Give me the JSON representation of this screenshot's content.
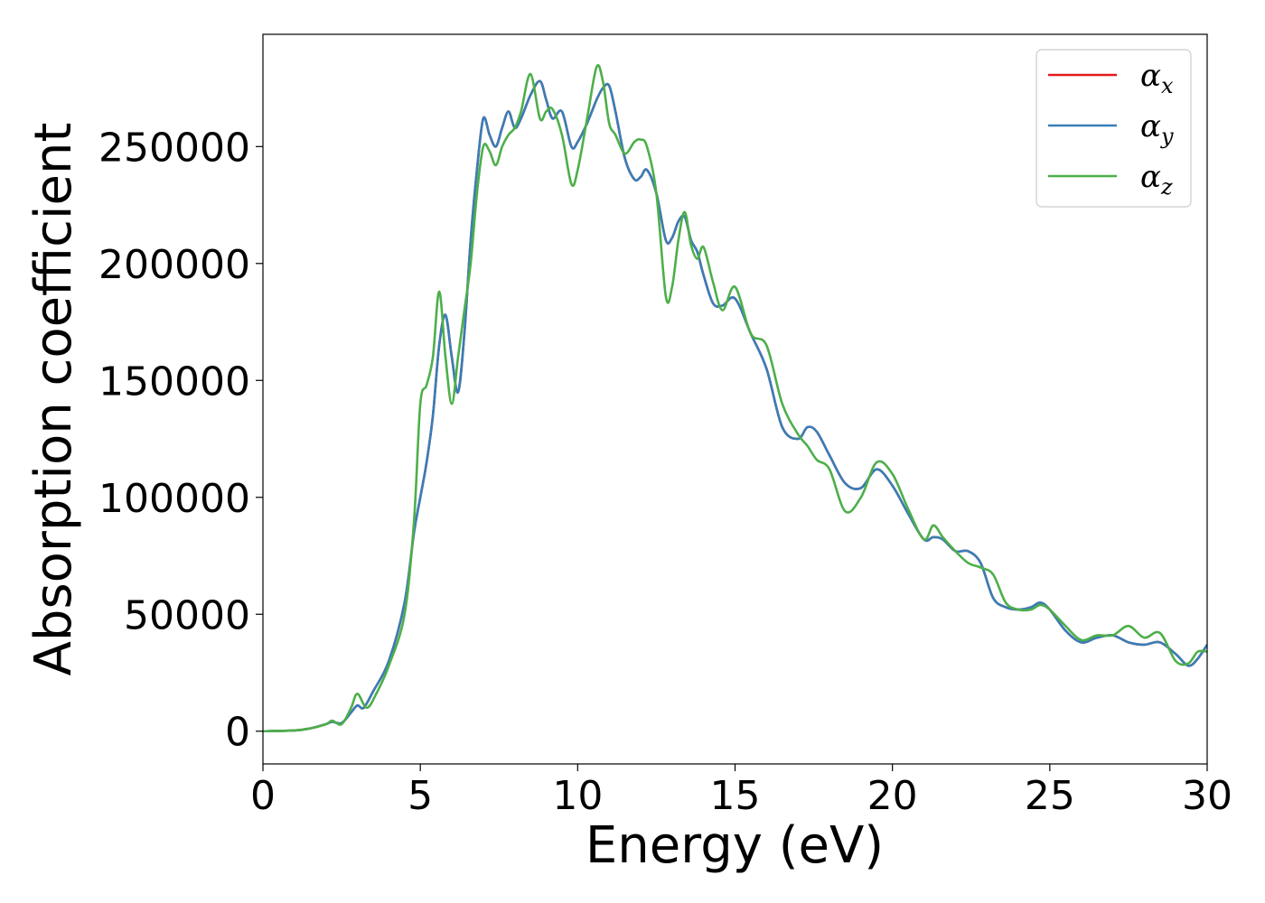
{
  "chart_data": {
    "type": "line",
    "xlabel": "Energy (eV)",
    "ylabel": "Absorption coefficient",
    "xlim": [
      0,
      30
    ],
    "ylim": [
      -14000,
      298000
    ],
    "x_ticks": [
      0,
      5,
      10,
      15,
      20,
      25,
      30
    ],
    "y_ticks": [
      0,
      50000,
      100000,
      150000,
      200000,
      250000
    ],
    "grid": false,
    "legend_position": "top-right",
    "series": [
      {
        "name": "α",
        "subscript": "x",
        "color": "#e41a1c",
        "x": [
          0,
          1,
          1.5,
          2,
          2.2,
          2.5,
          2.8,
          3.0,
          3.2,
          3.5,
          4.0,
          4.5,
          4.8,
          5.0,
          5.2,
          5.4,
          5.6,
          5.8,
          6.0,
          6.2,
          6.4,
          6.6,
          6.8,
          7.0,
          7.2,
          7.4,
          7.6,
          7.8,
          8.0,
          8.2,
          8.5,
          8.8,
          9.0,
          9.2,
          9.5,
          9.8,
          10.0,
          10.3,
          10.6,
          10.8,
          11.0,
          11.2,
          11.5,
          11.8,
          12.0,
          12.2,
          12.5,
          12.8,
          13.0,
          13.2,
          13.4,
          13.6,
          13.8,
          14.0,
          14.3,
          14.6,
          15.0,
          15.5,
          16.0,
          16.5,
          17.0,
          17.3,
          17.6,
          18.0,
          18.5,
          19.0,
          19.5,
          20.0,
          20.5,
          21.0,
          21.3,
          21.6,
          22.0,
          22.4,
          22.8,
          23.2,
          23.6,
          24.0,
          24.4,
          24.7,
          25.0,
          25.5,
          26.0,
          26.5,
          27.0,
          27.5,
          28.0,
          28.5,
          29.0,
          29.4,
          29.7,
          30.0
        ],
        "values": [
          0,
          300,
          1200,
          3000,
          4000,
          3500,
          8000,
          11000,
          10000,
          17000,
          30000,
          55000,
          85000,
          100000,
          115000,
          135000,
          165000,
          178000,
          160000,
          145000,
          170000,
          210000,
          240000,
          262000,
          255000,
          250000,
          258000,
          265000,
          258000,
          262000,
          272000,
          278000,
          270000,
          262000,
          265000,
          250000,
          252000,
          260000,
          270000,
          275000,
          276000,
          265000,
          245000,
          236000,
          237000,
          240000,
          230000,
          210000,
          211000,
          218000,
          220000,
          210000,
          205000,
          195000,
          183000,
          182000,
          185000,
          170000,
          155000,
          130000,
          125000,
          130000,
          128000,
          118000,
          106000,
          104000,
          112000,
          105000,
          93000,
          82000,
          83000,
          82000,
          77000,
          77000,
          72000,
          57000,
          53000,
          52000,
          53000,
          55000,
          52000,
          43000,
          38000,
          40000,
          41000,
          38000,
          37000,
          38000,
          33000,
          28000,
          31000,
          37000
        ]
      },
      {
        "name": "α",
        "subscript": "y",
        "color": "#377eb8",
        "x": [
          0,
          1,
          1.5,
          2,
          2.2,
          2.5,
          2.8,
          3.0,
          3.2,
          3.5,
          4.0,
          4.5,
          4.8,
          5.0,
          5.2,
          5.4,
          5.6,
          5.8,
          6.0,
          6.2,
          6.4,
          6.6,
          6.8,
          7.0,
          7.2,
          7.4,
          7.6,
          7.8,
          8.0,
          8.2,
          8.5,
          8.8,
          9.0,
          9.2,
          9.5,
          9.8,
          10.0,
          10.3,
          10.6,
          10.8,
          11.0,
          11.2,
          11.5,
          11.8,
          12.0,
          12.2,
          12.5,
          12.8,
          13.0,
          13.2,
          13.4,
          13.6,
          13.8,
          14.0,
          14.3,
          14.6,
          15.0,
          15.5,
          16.0,
          16.5,
          17.0,
          17.3,
          17.6,
          18.0,
          18.5,
          19.0,
          19.5,
          20.0,
          20.5,
          21.0,
          21.3,
          21.6,
          22.0,
          22.4,
          22.8,
          23.2,
          23.6,
          24.0,
          24.4,
          24.7,
          25.0,
          25.5,
          26.0,
          26.5,
          27.0,
          27.5,
          28.0,
          28.5,
          29.0,
          29.4,
          29.7,
          30.0
        ],
        "values": [
          0,
          300,
          1200,
          3000,
          4000,
          3500,
          8000,
          11000,
          10000,
          17000,
          30000,
          55000,
          85000,
          100000,
          115000,
          135000,
          165000,
          178000,
          160000,
          145000,
          170000,
          210000,
          240000,
          262000,
          255000,
          250000,
          258000,
          265000,
          258000,
          262000,
          272000,
          278000,
          270000,
          262000,
          265000,
          250000,
          252000,
          260000,
          270000,
          275000,
          276000,
          265000,
          245000,
          236000,
          237000,
          240000,
          230000,
          210000,
          211000,
          218000,
          220000,
          210000,
          205000,
          195000,
          183000,
          182000,
          185000,
          170000,
          155000,
          130000,
          125000,
          130000,
          128000,
          118000,
          106000,
          104000,
          112000,
          105000,
          93000,
          82000,
          83000,
          82000,
          77000,
          77000,
          72000,
          57000,
          53000,
          52000,
          53000,
          55000,
          52000,
          43000,
          38000,
          40000,
          41000,
          38000,
          37000,
          38000,
          33000,
          28000,
          31000,
          37000
        ]
      },
      {
        "name": "α",
        "subscript": "z",
        "color": "#4daf4a",
        "x": [
          0,
          1,
          1.5,
          2,
          2.2,
          2.5,
          2.8,
          3.0,
          3.3,
          3.6,
          4.0,
          4.5,
          4.8,
          5.0,
          5.2,
          5.4,
          5.6,
          5.8,
          6.0,
          6.2,
          6.4,
          6.6,
          6.8,
          7.0,
          7.2,
          7.4,
          7.6,
          7.8,
          8.0,
          8.2,
          8.5,
          8.8,
          9.0,
          9.2,
          9.5,
          9.8,
          10.0,
          10.3,
          10.6,
          10.8,
          11.0,
          11.2,
          11.5,
          11.8,
          12.0,
          12.2,
          12.5,
          12.8,
          13.0,
          13.2,
          13.4,
          13.6,
          13.8,
          14.0,
          14.3,
          14.6,
          15.0,
          15.5,
          16.0,
          16.5,
          17.0,
          17.3,
          17.6,
          18.0,
          18.5,
          19.0,
          19.5,
          20.0,
          20.5,
          21.0,
          21.3,
          21.6,
          22.0,
          22.4,
          22.8,
          23.2,
          23.6,
          24.0,
          24.4,
          24.7,
          25.0,
          25.5,
          26.0,
          26.5,
          27.0,
          27.5,
          28.0,
          28.5,
          29.0,
          29.4,
          29.7,
          30.0
        ],
        "values": [
          0,
          300,
          1200,
          3000,
          4500,
          3000,
          10000,
          16000,
          10000,
          16000,
          28000,
          50000,
          90000,
          140000,
          148000,
          160000,
          188000,
          160000,
          140000,
          160000,
          180000,
          200000,
          230000,
          250000,
          248000,
          242000,
          250000,
          255000,
          258000,
          265000,
          281000,
          262000,
          265000,
          266000,
          255000,
          234000,
          240000,
          262000,
          284000,
          278000,
          260000,
          255000,
          247000,
          252000,
          253000,
          250000,
          230000,
          186000,
          190000,
          210000,
          222000,
          208000,
          202000,
          207000,
          192000,
          180000,
          190000,
          170000,
          165000,
          140000,
          127000,
          122000,
          116000,
          112000,
          94000,
          100000,
          115000,
          110000,
          95000,
          82000,
          88000,
          83000,
          77000,
          72000,
          70000,
          67000,
          55000,
          52000,
          52000,
          54000,
          52000,
          45000,
          39000,
          41000,
          41000,
          45000,
          40000,
          42000,
          30000,
          29000,
          34000,
          34000
        ]
      }
    ]
  }
}
